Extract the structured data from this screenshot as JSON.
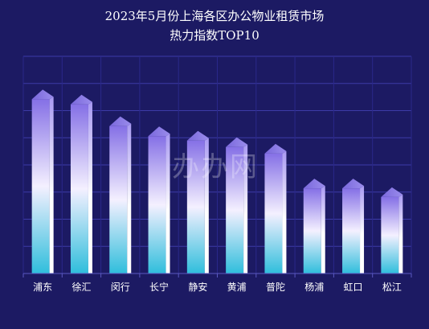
{
  "chart_data": {
    "type": "bar",
    "title": "2023年5月份上海各区办公物业租赁市场",
    "subtitle": "热力指数TOP10",
    "categories": [
      "浦东",
      "徐汇",
      "闵行",
      "长宁",
      "静安",
      "黄浦",
      "普陀",
      "杨浦",
      "虹口",
      "松江"
    ],
    "values": [
      254,
      247,
      217,
      203,
      197,
      188,
      179,
      131,
      131,
      119
    ],
    "ylim": [
      0,
      300
    ],
    "grid": true,
    "legend": "none",
    "bar_colors": {
      "top": "#7f6fe0",
      "middle": "#ffffff",
      "bottom": "#35c1dc"
    },
    "background": "#1c1a63",
    "grid_color": "#3d3ba8"
  },
  "watermark": "办办网"
}
